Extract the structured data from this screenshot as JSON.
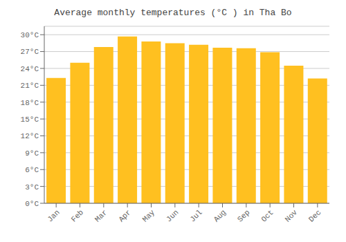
{
  "chart_data": {
    "type": "bar",
    "title": "Average monthly temperatures (°C ) in Tha Bo",
    "categories": [
      "Jan",
      "Feb",
      "Mar",
      "Apr",
      "May",
      "Jun",
      "Jul",
      "Aug",
      "Sep",
      "Oct",
      "Nov",
      "Dec"
    ],
    "values": [
      22.3,
      25.0,
      27.8,
      29.7,
      28.8,
      28.5,
      28.2,
      27.7,
      27.6,
      26.9,
      24.5,
      22.2
    ],
    "color": "#FFC020",
    "ylim": [
      0,
      31.5
    ],
    "yticks": [
      {
        "value": 0,
        "label": "0°C"
      },
      {
        "value": 3,
        "label": "3°C"
      },
      {
        "value": 6,
        "label": "6°C"
      },
      {
        "value": 9,
        "label": "9°C"
      },
      {
        "value": 12,
        "label": "12°C"
      },
      {
        "value": 15,
        "label": "15°C"
      },
      {
        "value": 18,
        "label": "18°C"
      },
      {
        "value": 21,
        "label": "21°C"
      },
      {
        "value": 24,
        "label": "24°C"
      },
      {
        "value": 27,
        "label": "27°C"
      },
      {
        "value": 30,
        "label": "30°C"
      }
    ],
    "grid": true
  }
}
